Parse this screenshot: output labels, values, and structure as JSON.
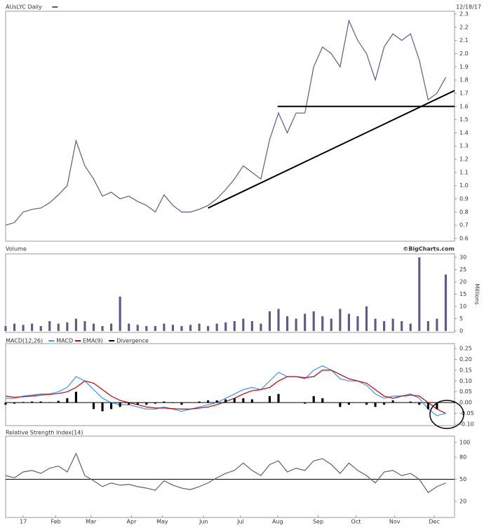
{
  "chart_data": [
    {
      "type": "line",
      "title": "AUsLYC Daily",
      "date_label": "12/18/17",
      "xlim": [
        0,
        51
      ],
      "ylim": [
        0.6,
        2.3
      ],
      "yticks": [
        {
          "value": 0.6,
          "label": "0.6"
        },
        {
          "value": 0.7,
          "label": "0.7"
        },
        {
          "value": 0.8,
          "label": "0.8"
        },
        {
          "value": 0.9,
          "label": "0.9"
        },
        {
          "value": 1.0,
          "label": "1.0"
        },
        {
          "value": 1.1,
          "label": "1.1"
        },
        {
          "value": 1.2,
          "label": "1.2"
        },
        {
          "value": 1.3,
          "label": "1.3"
        },
        {
          "value": 1.4,
          "label": "1.4"
        },
        {
          "value": 1.5,
          "label": "1.5"
        },
        {
          "value": 1.6,
          "label": "1.6"
        },
        {
          "value": 1.7,
          "label": "1.7"
        },
        {
          "value": 1.8,
          "label": "1.8"
        },
        {
          "value": 1.9,
          "label": "1.9"
        },
        {
          "value": 2.0,
          "label": "2.0"
        },
        {
          "value": 2.1,
          "label": "2.1"
        },
        {
          "value": 2.2,
          "label": "2.2"
        },
        {
          "value": 2.3,
          "label": "2.3"
        }
      ],
      "series": [
        {
          "name": "AUsLYC",
          "color": "#5b5b8a",
          "type": "line",
          "values": [
            0.7,
            0.72,
            0.8,
            0.82,
            0.83,
            0.87,
            0.93,
            1.0,
            1.34,
            1.15,
            1.05,
            0.92,
            0.95,
            0.9,
            0.92,
            0.88,
            0.85,
            0.8,
            0.93,
            0.85,
            0.8,
            0.8,
            0.82,
            0.85,
            0.9,
            0.97,
            1.05,
            1.15,
            1.1,
            1.05,
            1.35,
            1.55,
            1.4,
            1.55,
            1.55,
            1.9,
            2.05,
            2.0,
            1.9,
            2.25,
            2.1,
            2.0,
            1.8,
            2.05,
            2.15,
            2.1,
            2.15,
            1.95,
            1.65,
            1.7,
            1.82
          ]
        }
      ],
      "trend_lines": [
        {
          "color": "#000000",
          "x": [
            23,
            51
          ],
          "y": [
            0.83,
            1.72
          ]
        },
        {
          "color": "#000000",
          "x": [
            30.9,
            51
          ],
          "y": [
            1.6,
            1.6
          ]
        }
      ]
    },
    {
      "type": "bar",
      "title": "Volume",
      "source": "©BigCharts.com",
      "yaxis_label": "Millions",
      "xlim": [
        0,
        51
      ],
      "ylim": [
        0,
        30
      ],
      "yticks": [
        0,
        5,
        10,
        15,
        20,
        25,
        30
      ],
      "series": [
        {
          "name": "Volume",
          "color": "#5b5b8a",
          "type": "bar",
          "values": [
            2,
            3,
            2.5,
            3,
            2,
            4,
            3,
            3.5,
            5,
            4,
            3,
            2,
            3,
            14,
            3,
            2.5,
            2,
            2,
            3,
            2.5,
            2,
            2.5,
            3,
            2,
            3,
            3.5,
            4,
            5,
            4,
            3,
            8,
            9,
            6,
            5,
            7,
            8,
            6,
            5,
            9,
            7,
            6,
            10,
            5,
            4,
            5,
            4,
            3,
            30,
            4,
            5,
            23
          ]
        }
      ]
    },
    {
      "type": "line",
      "title": "MACD(12,26)",
      "reference_line": 0,
      "xlim": [
        0,
        51
      ],
      "ylim": [
        -0.1,
        0.25
      ],
      "yticks": [
        {
          "value": -0.1,
          "label": "-0.10"
        },
        {
          "value": -0.05,
          "label": "-0.05"
        },
        {
          "value": 0,
          "label": "0.00"
        },
        {
          "value": 0.05,
          "label": "0.05"
        },
        {
          "value": 0.1,
          "label": "0.10"
        },
        {
          "value": 0.15,
          "label": "0.15"
        },
        {
          "value": 0.2,
          "label": "0.20"
        },
        {
          "value": 0.25,
          "label": "0.25"
        }
      ],
      "series": [
        {
          "name": "MACD",
          "color": "#3399ff",
          "type": "line",
          "values": [
            0.02,
            0.02,
            0.03,
            0.035,
            0.04,
            0.04,
            0.05,
            0.07,
            0.12,
            0.1,
            0.06,
            0.02,
            0.0,
            -0.01,
            -0.01,
            -0.02,
            -0.03,
            -0.03,
            -0.02,
            -0.03,
            -0.04,
            -0.03,
            -0.02,
            -0.01,
            0.0,
            0.02,
            0.04,
            0.06,
            0.07,
            0.06,
            0.1,
            0.14,
            0.12,
            0.12,
            0.11,
            0.15,
            0.17,
            0.15,
            0.11,
            0.1,
            0.1,
            0.08,
            0.04,
            0.02,
            0.03,
            0.03,
            0.04,
            0.02,
            -0.03,
            -0.06,
            -0.05
          ]
        },
        {
          "name": "EMA(9)",
          "color": "#cc0000",
          "type": "line",
          "values": [
            0.03,
            0.025,
            0.027,
            0.03,
            0.035,
            0.038,
            0.042,
            0.05,
            0.07,
            0.1,
            0.09,
            0.06,
            0.03,
            0.01,
            0.0,
            -0.01,
            -0.02,
            -0.025,
            -0.025,
            -0.028,
            -0.03,
            -0.03,
            -0.025,
            -0.02,
            -0.01,
            0.005,
            0.02,
            0.04,
            0.055,
            0.06,
            0.07,
            0.1,
            0.12,
            0.12,
            0.115,
            0.12,
            0.15,
            0.15,
            0.13,
            0.11,
            0.1,
            0.09,
            0.06,
            0.03,
            0.02,
            0.03,
            0.035,
            0.03,
            0.0,
            -0.03,
            -0.05
          ]
        },
        {
          "name": "Divergence",
          "color": "#000000",
          "type": "bar",
          "values": [
            -0.01,
            -0.005,
            0.003,
            0.005,
            0.005,
            0.002,
            0.008,
            0.02,
            0.05,
            0,
            -0.03,
            -0.04,
            -0.03,
            -0.02,
            -0.01,
            -0.01,
            -0.01,
            -0.005,
            0.005,
            -0.002,
            -0.01,
            0,
            0.005,
            0.01,
            0.01,
            0.015,
            0.02,
            0.02,
            0.015,
            0,
            0.03,
            0.04,
            0,
            0,
            -0.005,
            0.03,
            0.02,
            0,
            -0.02,
            -0.01,
            0,
            -0.01,
            -0.02,
            -0.01,
            0.01,
            0,
            0.005,
            -0.01,
            -0.03,
            -0.03,
            0
          ]
        }
      ]
    },
    {
      "type": "line",
      "title": "Relative Strength Index(14)",
      "reference_line": 50,
      "xlim": [
        0,
        51
      ],
      "ylim": [
        0,
        100
      ],
      "yticks": [
        20,
        50,
        80,
        100
      ],
      "xticks": [
        {
          "value": 2.0,
          "label": "17"
        },
        {
          "value": 5.7,
          "label": "Feb"
        },
        {
          "value": 9.7,
          "label": "Mar"
        },
        {
          "value": 14.3,
          "label": "Apr"
        },
        {
          "value": 17.8,
          "label": "May"
        },
        {
          "value": 22.5,
          "label": "Jun"
        },
        {
          "value": 26.7,
          "label": "Jul"
        },
        {
          "value": 30.9,
          "label": "Aug"
        },
        {
          "value": 35.5,
          "label": "Sep"
        },
        {
          "value": 39.8,
          "label": "Oct"
        },
        {
          "value": 44.2,
          "label": "Nov"
        },
        {
          "value": 48.7,
          "label": "Dec"
        }
      ],
      "series": [
        {
          "name": "RSI",
          "color": "#5b5b8a",
          "type": "line",
          "values": [
            55,
            52,
            60,
            62,
            58,
            65,
            68,
            60,
            85,
            55,
            48,
            40,
            45,
            42,
            43,
            40,
            38,
            35,
            48,
            42,
            38,
            36,
            40,
            45,
            52,
            58,
            62,
            72,
            62,
            55,
            70,
            75,
            60,
            65,
            62,
            75,
            78,
            70,
            58,
            72,
            62,
            55,
            45,
            60,
            62,
            55,
            58,
            50,
            32,
            40,
            45
          ]
        }
      ]
    }
  ]
}
